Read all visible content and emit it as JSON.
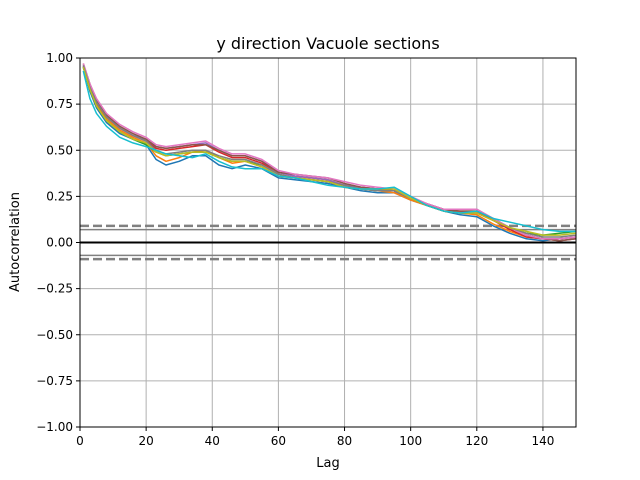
{
  "chart_data": {
    "type": "line",
    "title": "y direction Vacuole sections",
    "xlabel": "Lag",
    "ylabel": "Autocorrelation",
    "xlim": [
      0,
      150
    ],
    "ylim": [
      -1.0,
      1.0
    ],
    "x_ticks": [
      0,
      20,
      40,
      60,
      80,
      100,
      120,
      140
    ],
    "y_ticks": [
      1.0,
      0.75,
      0.5,
      0.25,
      0.0,
      -0.25,
      -0.5,
      -0.75,
      -1.0
    ],
    "x_tick_labels": [
      "0",
      "20",
      "40",
      "60",
      "80",
      "100",
      "120",
      "140"
    ],
    "y_tick_labels": [
      "1.00",
      "0.75",
      "0.50",
      "0.25",
      "0.00",
      "−0.25",
      "−0.50",
      "−0.75",
      "−1.00"
    ],
    "grid": true,
    "reference_lines": [
      {
        "value": 0.0,
        "style": "solid",
        "color": "#000000"
      },
      {
        "value": 0.07,
        "style": "solid",
        "color": "#808080"
      },
      {
        "value": -0.07,
        "style": "solid",
        "color": "#808080"
      },
      {
        "value": 0.09,
        "style": "dashed",
        "color": "#808080"
      },
      {
        "value": -0.09,
        "style": "dashed",
        "color": "#808080"
      }
    ],
    "series": [
      {
        "color": "#1f77b4",
        "x": [
          1,
          3,
          5,
          8,
          12,
          16,
          20,
          23,
          26,
          30,
          34,
          38,
          42,
          46,
          50,
          55,
          60,
          65,
          70,
          75,
          80,
          85,
          90,
          95,
          100,
          105,
          110,
          115,
          120,
          125,
          130,
          135,
          140,
          145,
          150
        ],
        "values": [
          0.95,
          0.82,
          0.73,
          0.65,
          0.59,
          0.56,
          0.53,
          0.45,
          0.42,
          0.44,
          0.47,
          0.47,
          0.42,
          0.4,
          0.42,
          0.4,
          0.35,
          0.34,
          0.33,
          0.32,
          0.3,
          0.28,
          0.27,
          0.27,
          0.23,
          0.2,
          0.17,
          0.15,
          0.14,
          0.09,
          0.05,
          0.02,
          0.01,
          0.02,
          0.03
        ]
      },
      {
        "color": "#ff7f0e",
        "x": [
          1,
          3,
          5,
          8,
          12,
          16,
          20,
          23,
          26,
          30,
          34,
          38,
          42,
          46,
          50,
          55,
          60,
          65,
          70,
          75,
          80,
          85,
          90,
          95,
          100,
          105,
          110,
          115,
          120,
          125,
          130,
          135,
          140,
          145,
          150
        ],
        "values": [
          0.96,
          0.84,
          0.75,
          0.67,
          0.61,
          0.57,
          0.54,
          0.47,
          0.44,
          0.46,
          0.49,
          0.5,
          0.46,
          0.43,
          0.44,
          0.41,
          0.36,
          0.35,
          0.34,
          0.33,
          0.3,
          0.29,
          0.28,
          0.27,
          0.23,
          0.2,
          0.17,
          0.16,
          0.15,
          0.1,
          0.06,
          0.03,
          0.02,
          0.02,
          0.03
        ]
      },
      {
        "color": "#2ca02c",
        "x": [
          1,
          3,
          5,
          8,
          12,
          16,
          20,
          23,
          26,
          30,
          34,
          38,
          42,
          46,
          50,
          55,
          60,
          65,
          70,
          75,
          80,
          85,
          90,
          95,
          100,
          105,
          110,
          115,
          120,
          125,
          130,
          135,
          140,
          145,
          150
        ],
        "values": [
          0.95,
          0.83,
          0.74,
          0.66,
          0.6,
          0.56,
          0.53,
          0.49,
          0.47,
          0.48,
          0.49,
          0.49,
          0.46,
          0.44,
          0.44,
          0.42,
          0.37,
          0.35,
          0.34,
          0.33,
          0.31,
          0.29,
          0.28,
          0.28,
          0.24,
          0.2,
          0.17,
          0.16,
          0.16,
          0.12,
          0.08,
          0.05,
          0.04,
          0.05,
          0.06
        ]
      },
      {
        "color": "#d62728",
        "x": [
          1,
          3,
          5,
          8,
          12,
          16,
          20,
          23,
          26,
          30,
          34,
          38,
          42,
          46,
          50,
          55,
          60,
          65,
          70,
          75,
          80,
          85,
          90,
          95,
          100,
          105,
          110,
          115,
          120,
          125,
          130,
          135,
          140,
          145,
          150
        ],
        "values": [
          0.96,
          0.85,
          0.76,
          0.68,
          0.62,
          0.58,
          0.55,
          0.51,
          0.5,
          0.51,
          0.52,
          0.53,
          0.49,
          0.46,
          0.46,
          0.43,
          0.38,
          0.36,
          0.35,
          0.34,
          0.31,
          0.3,
          0.29,
          0.28,
          0.24,
          0.2,
          0.17,
          0.17,
          0.17,
          0.12,
          0.07,
          0.03,
          0.02,
          0.01,
          0.02
        ]
      },
      {
        "color": "#9467bd",
        "x": [
          1,
          3,
          5,
          8,
          12,
          16,
          20,
          23,
          26,
          30,
          34,
          38,
          42,
          46,
          50,
          55,
          60,
          65,
          70,
          75,
          80,
          85,
          90,
          95,
          100,
          105,
          110,
          115,
          120,
          125,
          130,
          135,
          140,
          145,
          150
        ],
        "values": [
          0.96,
          0.85,
          0.77,
          0.69,
          0.62,
          0.58,
          0.56,
          0.52,
          0.51,
          0.52,
          0.53,
          0.54,
          0.5,
          0.47,
          0.47,
          0.44,
          0.38,
          0.36,
          0.35,
          0.34,
          0.31,
          0.3,
          0.29,
          0.28,
          0.24,
          0.21,
          0.18,
          0.18,
          0.18,
          0.13,
          0.08,
          0.04,
          0.02,
          0.02,
          0.03
        ]
      },
      {
        "color": "#8c564b",
        "x": [
          1,
          3,
          5,
          8,
          12,
          16,
          20,
          23,
          26,
          30,
          34,
          38,
          42,
          46,
          50,
          55,
          60,
          65,
          70,
          75,
          80,
          85,
          90,
          95,
          100,
          105,
          110,
          115,
          120,
          125,
          130,
          135,
          140,
          145,
          150
        ],
        "values": [
          0.97,
          0.86,
          0.77,
          0.69,
          0.63,
          0.59,
          0.56,
          0.52,
          0.51,
          0.52,
          0.53,
          0.53,
          0.5,
          0.47,
          0.47,
          0.44,
          0.38,
          0.37,
          0.36,
          0.35,
          0.32,
          0.3,
          0.29,
          0.28,
          0.24,
          0.21,
          0.18,
          0.17,
          0.17,
          0.13,
          0.08,
          0.04,
          0.02,
          0.01,
          0.02
        ]
      },
      {
        "color": "#e377c2",
        "x": [
          1,
          3,
          5,
          8,
          12,
          16,
          20,
          23,
          26,
          30,
          34,
          38,
          42,
          46,
          50,
          55,
          60,
          65,
          70,
          75,
          80,
          85,
          90,
          95,
          100,
          105,
          110,
          115,
          120,
          125,
          130,
          135,
          140,
          145,
          150
        ],
        "values": [
          0.97,
          0.86,
          0.78,
          0.7,
          0.64,
          0.6,
          0.57,
          0.53,
          0.52,
          0.53,
          0.54,
          0.55,
          0.51,
          0.48,
          0.48,
          0.45,
          0.39,
          0.37,
          0.36,
          0.35,
          0.33,
          0.31,
          0.3,
          0.29,
          0.25,
          0.21,
          0.18,
          0.18,
          0.18,
          0.13,
          0.08,
          0.04,
          0.02,
          0.02,
          0.03
        ]
      },
      {
        "color": "#7f7f7f",
        "x": [
          1,
          3,
          5,
          8,
          12,
          16,
          20,
          23,
          26,
          30,
          34,
          38,
          42,
          46,
          50,
          55,
          60,
          65,
          70,
          75,
          80,
          85,
          90,
          95,
          100,
          105,
          110,
          115,
          120,
          125,
          130,
          135,
          140,
          145,
          150
        ],
        "values": [
          0.96,
          0.84,
          0.76,
          0.68,
          0.62,
          0.58,
          0.55,
          0.5,
          0.48,
          0.49,
          0.5,
          0.5,
          0.47,
          0.45,
          0.45,
          0.42,
          0.37,
          0.35,
          0.34,
          0.33,
          0.31,
          0.29,
          0.28,
          0.28,
          0.24,
          0.2,
          0.17,
          0.16,
          0.16,
          0.12,
          0.08,
          0.05,
          0.03,
          0.03,
          0.04
        ]
      },
      {
        "color": "#bcbd22",
        "x": [
          1,
          3,
          5,
          8,
          12,
          16,
          20,
          23,
          26,
          30,
          34,
          38,
          42,
          46,
          50,
          55,
          60,
          65,
          70,
          75,
          80,
          85,
          90,
          95,
          100,
          105,
          110,
          115,
          120,
          125,
          130,
          135,
          140,
          145,
          150
        ],
        "values": [
          0.95,
          0.83,
          0.74,
          0.66,
          0.6,
          0.56,
          0.54,
          0.49,
          0.47,
          0.48,
          0.49,
          0.49,
          0.46,
          0.44,
          0.44,
          0.41,
          0.36,
          0.35,
          0.34,
          0.33,
          0.3,
          0.29,
          0.29,
          0.29,
          0.24,
          0.2,
          0.17,
          0.16,
          0.16,
          0.12,
          0.08,
          0.06,
          0.04,
          0.04,
          0.05
        ]
      },
      {
        "color": "#17becf",
        "x": [
          1,
          3,
          5,
          8,
          12,
          16,
          20,
          23,
          26,
          30,
          34,
          38,
          42,
          46,
          50,
          55,
          60,
          65,
          70,
          75,
          80,
          85,
          90,
          95,
          100,
          105,
          110,
          115,
          120,
          125,
          130,
          135,
          140,
          145,
          150
        ],
        "values": [
          0.93,
          0.78,
          0.7,
          0.63,
          0.57,
          0.54,
          0.52,
          0.5,
          0.48,
          0.47,
          0.46,
          0.48,
          0.44,
          0.41,
          0.4,
          0.4,
          0.36,
          0.35,
          0.33,
          0.31,
          0.3,
          0.29,
          0.29,
          0.3,
          0.25,
          0.2,
          0.17,
          0.16,
          0.17,
          0.13,
          0.11,
          0.09,
          0.07,
          0.06,
          0.06
        ]
      }
    ]
  }
}
